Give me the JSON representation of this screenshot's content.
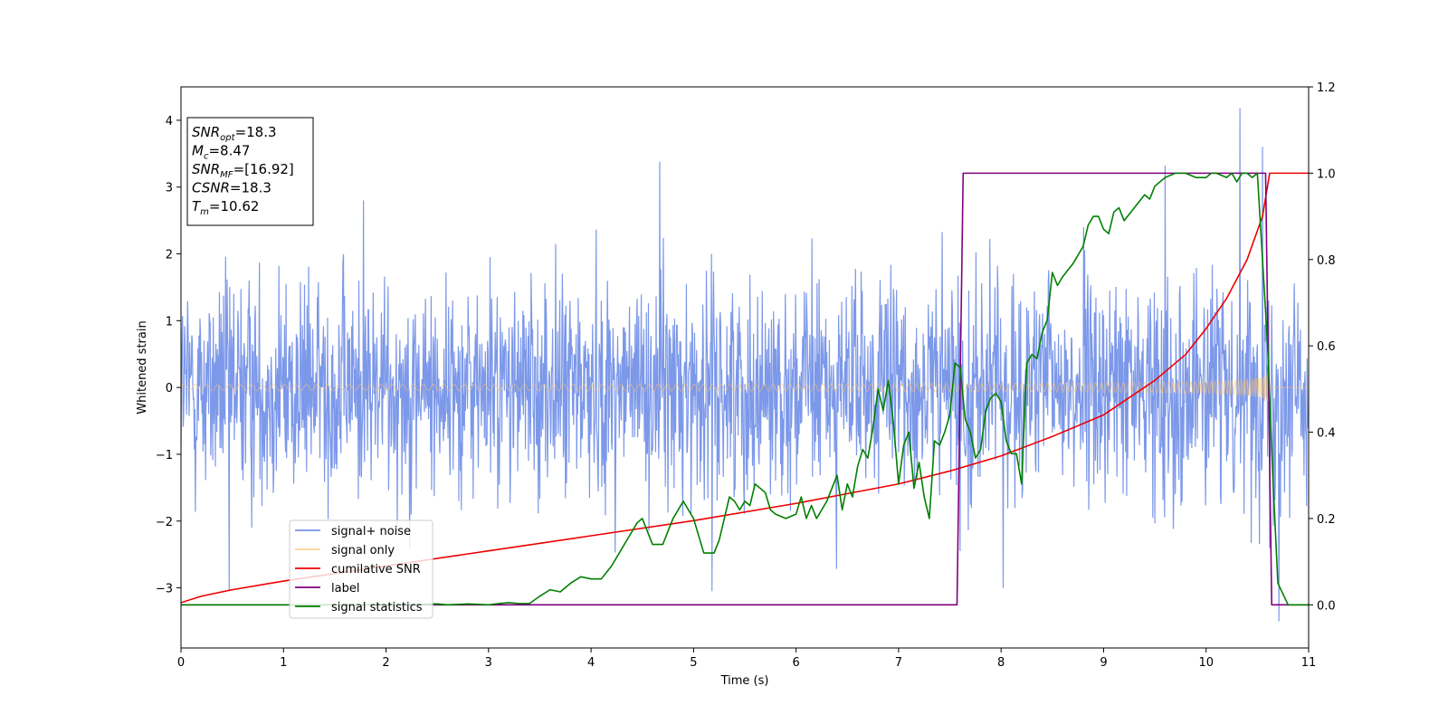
{
  "chart_data": {
    "type": "line",
    "xlabel": "Time (s)",
    "ylabel": "Whitened strain",
    "xlim": [
      0,
      11
    ],
    "ylim_left": [
      -3.9,
      4.5
    ],
    "ylim_right": [
      -0.1,
      1.2
    ],
    "x_ticks": [
      0,
      1,
      2,
      3,
      4,
      5,
      6,
      7,
      8,
      9,
      10,
      11
    ],
    "y_ticks_left": [
      -3,
      -2,
      -1,
      0,
      1,
      2,
      3,
      4
    ],
    "y_ticks_left_labels": [
      "−3",
      "−2",
      "−1",
      "0",
      "1",
      "2",
      "3",
      "4"
    ],
    "y_ticks_right": [
      0.0,
      0.2,
      0.4,
      0.6,
      0.8,
      1.0,
      1.2
    ],
    "y_ticks_right_labels": [
      "0.0",
      "0.2",
      "0.4",
      "0.6",
      "0.8",
      "1.0",
      "1.2"
    ],
    "legend_position": "lower-left",
    "grid": false,
    "annotation": {
      "lines": [
        {
          "base": "SNR",
          "sub": "opt",
          "value": "=18.3"
        },
        {
          "base": "M",
          "sub": "c",
          "value": "=8.47"
        },
        {
          "base": "SNR",
          "sub": "MF",
          "value": "=[16.92]"
        },
        {
          "base": "CSNR",
          "sub": "",
          "value": "=18.3"
        },
        {
          "base": "T",
          "sub": "m",
          "value": "=10.62"
        }
      ]
    },
    "series": [
      {
        "name": "signal+ noise",
        "axis": "left",
        "color": "#7592e8",
        "style": "noise",
        "noise_std": 1.0,
        "points": 2200,
        "spikes": [
          [
            0.47,
            -3.05
          ],
          [
            1.78,
            2.8
          ],
          [
            4.67,
            3.38
          ],
          [
            5.18,
            -3.05
          ],
          [
            7.6,
            -2.45
          ],
          [
            8.02,
            -3.0
          ],
          [
            9.6,
            3.32
          ],
          [
            10.33,
            4.18
          ],
          [
            10.55,
            3.6
          ],
          [
            10.62,
            -2.4
          ],
          [
            10.71,
            -3.5
          ]
        ]
      },
      {
        "name": "signal only",
        "axis": "left",
        "color": "#ffc36b",
        "style": "chirp",
        "merger_time": 10.62
      },
      {
        "name": "cumilative SNR",
        "axis": "right",
        "color": "#ee0000",
        "x": [
          0,
          0.2,
          0.5,
          1,
          2,
          3,
          4,
          5,
          6,
          7,
          7.5,
          8,
          8.5,
          9,
          9.5,
          9.8,
          10,
          10.2,
          10.4,
          10.55,
          10.62,
          11
        ],
        "y": [
          0.005,
          0.02,
          0.035,
          0.055,
          0.09,
          0.125,
          0.16,
          0.195,
          0.235,
          0.28,
          0.31,
          0.345,
          0.39,
          0.44,
          0.52,
          0.58,
          0.64,
          0.71,
          0.8,
          0.9,
          1.0,
          1.0
        ]
      },
      {
        "name": "label",
        "axis": "right",
        "color": "#800080",
        "x": [
          0,
          7.57,
          7.63,
          10.58,
          10.64,
          11
        ],
        "y": [
          0,
          0,
          1,
          1,
          0,
          0
        ]
      },
      {
        "name": "signal statistics",
        "axis": "right",
        "color": "#008000",
        "x": [
          0,
          0.5,
          1,
          1.5,
          2,
          2.5,
          2.6,
          2.8,
          3.0,
          3.1,
          3.2,
          3.3,
          3.4,
          3.5,
          3.6,
          3.7,
          3.8,
          3.9,
          4.0,
          4.1,
          4.2,
          4.3,
          4.35,
          4.4,
          4.45,
          4.5,
          4.6,
          4.7,
          4.75,
          4.8,
          4.9,
          5.0,
          5.1,
          5.15,
          5.2,
          5.25,
          5.3,
          5.35,
          5.4,
          5.45,
          5.5,
          5.55,
          5.6,
          5.7,
          5.75,
          5.8,
          5.9,
          6.0,
          6.05,
          6.1,
          6.15,
          6.2,
          6.3,
          6.4,
          6.45,
          6.5,
          6.55,
          6.6,
          6.65,
          6.7,
          6.75,
          6.8,
          6.85,
          6.9,
          6.95,
          7.0,
          7.05,
          7.1,
          7.15,
          7.2,
          7.25,
          7.3,
          7.35,
          7.4,
          7.45,
          7.5,
          7.55,
          7.6,
          7.65,
          7.7,
          7.75,
          7.8,
          7.85,
          7.9,
          7.95,
          8.0,
          8.05,
          8.1,
          8.15,
          8.2,
          8.25,
          8.3,
          8.35,
          8.4,
          8.45,
          8.5,
          8.55,
          8.6,
          8.7,
          8.8,
          8.85,
          8.9,
          8.95,
          9.0,
          9.05,
          9.1,
          9.15,
          9.2,
          9.3,
          9.4,
          9.45,
          9.5,
          9.6,
          9.7,
          9.8,
          9.9,
          10.0,
          10.05,
          10.1,
          10.2,
          10.25,
          10.3,
          10.35,
          10.4,
          10.45,
          10.5,
          10.55,
          10.6,
          10.65,
          10.7,
          10.8,
          11.0
        ],
        "y": [
          0,
          0,
          0,
          0,
          0,
          0.002,
          0.0,
          0.002,
          0.0,
          0.003,
          0.005,
          0.003,
          0.003,
          0.02,
          0.035,
          0.03,
          0.05,
          0.065,
          0.06,
          0.06,
          0.09,
          0.13,
          0.15,
          0.17,
          0.19,
          0.2,
          0.14,
          0.14,
          0.17,
          0.2,
          0.24,
          0.2,
          0.12,
          0.12,
          0.12,
          0.15,
          0.2,
          0.25,
          0.24,
          0.22,
          0.24,
          0.23,
          0.28,
          0.26,
          0.22,
          0.21,
          0.2,
          0.21,
          0.25,
          0.2,
          0.23,
          0.2,
          0.24,
          0.3,
          0.22,
          0.28,
          0.25,
          0.32,
          0.36,
          0.34,
          0.41,
          0.5,
          0.45,
          0.52,
          0.42,
          0.28,
          0.37,
          0.4,
          0.27,
          0.33,
          0.25,
          0.2,
          0.38,
          0.37,
          0.4,
          0.44,
          0.56,
          0.55,
          0.43,
          0.4,
          0.34,
          0.36,
          0.45,
          0.48,
          0.49,
          0.47,
          0.38,
          0.35,
          0.35,
          0.28,
          0.56,
          0.58,
          0.57,
          0.63,
          0.66,
          0.77,
          0.74,
          0.76,
          0.79,
          0.83,
          0.88,
          0.9,
          0.9,
          0.87,
          0.86,
          0.91,
          0.92,
          0.89,
          0.92,
          0.95,
          0.94,
          0.97,
          0.99,
          1.0,
          1.0,
          0.99,
          0.99,
          1.0,
          1.0,
          0.99,
          1.0,
          0.98,
          1.0,
          1.0,
          0.99,
          1.0,
          0.8,
          0.6,
          0.3,
          0.05,
          0.0,
          0.0
        ]
      }
    ]
  }
}
